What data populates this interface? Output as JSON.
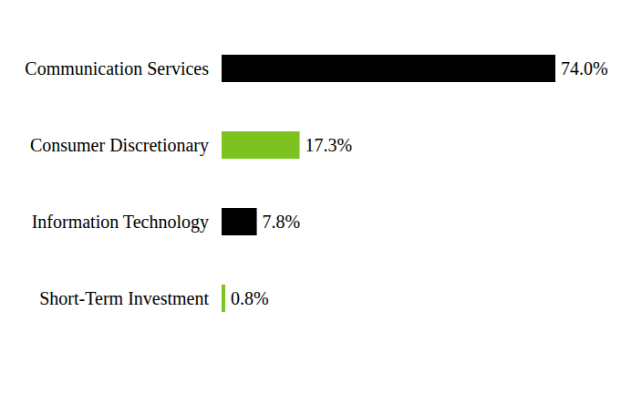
{
  "chart_data": {
    "type": "bar",
    "orientation": "horizontal",
    "categories": [
      "Communication Services",
      "Consumer Discretionary",
      "Information Technology",
      "Short-Term Investment"
    ],
    "values": [
      74.0,
      17.3,
      7.8,
      0.8
    ],
    "value_labels": [
      "74.0%",
      "17.3%",
      "7.8%",
      "0.8%"
    ],
    "colors": [
      "#000000",
      "#7dc31f",
      "#000000",
      "#7dc31f"
    ],
    "data_labels": true,
    "tick_labels": "y",
    "grid": false
  }
}
